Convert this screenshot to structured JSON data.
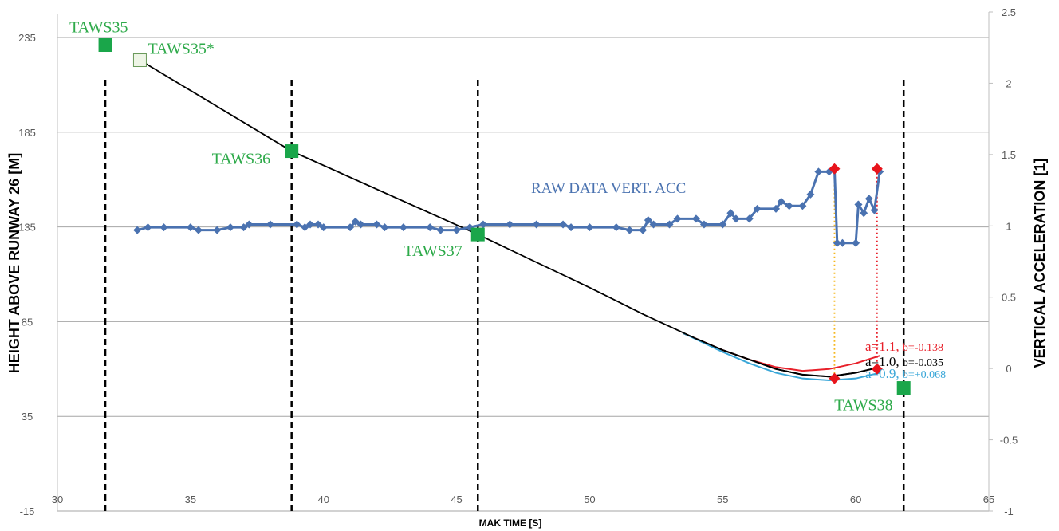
{
  "chart_data": {
    "type": "line",
    "xlabel": "MAK TIME [S]",
    "ylabel_left": "HEIGHT ABOVE RUNWAY 26 [M]",
    "ylabel_right": "VERTICAL ACCELERATION [1]",
    "xlim": [
      30,
      65
    ],
    "ylim_left": [
      -15,
      235
    ],
    "ylim_right": [
      -1,
      2.5
    ],
    "x_ticks": [
      "30",
      "35",
      "40",
      "45",
      "50",
      "55",
      "60",
      "65"
    ],
    "y_left_ticks": [
      "-15",
      "35",
      "85",
      "135",
      "185",
      "235"
    ],
    "y_right_ticks": [
      "-1",
      "-0.5",
      "0",
      "0.5",
      "1",
      "1.5",
      "2",
      "2.5"
    ],
    "grid": "horizontal",
    "colors": {
      "grid": "#a6a6a6",
      "height_line": "#000000",
      "accel": "#4a72b0",
      "fit_a11": "#e8202a",
      "fit_a10": "#000000",
      "fit_a09": "#3aa7d8",
      "marker_green": "#1aa64a",
      "label_green": "#2eaa4a",
      "marker_red": "#e8141c",
      "dash": "#000000",
      "drop_orange": "#f5b820",
      "drop_red": "#e8202a"
    },
    "vertical_dashed_lines_x": [
      31.8,
      38.8,
      45.8,
      61.8
    ],
    "taws_points": [
      {
        "label": "TAWS35",
        "x": 31.8,
        "y": 231,
        "filled": true
      },
      {
        "label": "TAWS35*",
        "x": 33.1,
        "y": 223,
        "filled": false
      },
      {
        "label": "TAWS36",
        "x": 38.8,
        "y": 175,
        "filled": true
      },
      {
        "label": "TAWS37",
        "x": 45.8,
        "y": 131,
        "filled": true
      },
      {
        "label": "TAWS38",
        "x": 61.8,
        "y": 50,
        "filled": true
      }
    ],
    "height_line": {
      "x": [
        33.1,
        38.8,
        45.8,
        50,
        52,
        54,
        55,
        56,
        57,
        58,
        59,
        60,
        60.9
      ],
      "y": [
        223,
        175,
        131,
        103,
        89,
        76,
        70,
        65,
        60,
        57,
        56,
        58,
        61
      ]
    },
    "fits": [
      {
        "name": "a=1.1, b=-0.138",
        "x": [
          53.5,
          55,
          56,
          57,
          58,
          59,
          60,
          60.9
        ],
        "y": [
          79,
          70,
          65,
          61,
          59,
          60,
          63,
          67
        ]
      },
      {
        "name": "a=1.0, b=-0.035",
        "x": [
          53.5,
          55,
          56,
          57,
          58,
          59,
          60,
          60.9
        ],
        "y": [
          79,
          70,
          65,
          60,
          57,
          56,
          58,
          61
        ]
      },
      {
        "name": "a=0.9, b=+0.068",
        "x": [
          53.5,
          55,
          56,
          57,
          58,
          59,
          60,
          60.9
        ],
        "y": [
          79,
          69,
          63,
          58,
          55,
          54,
          55,
          58
        ]
      }
    ],
    "accel_series": {
      "name": "RAW DATA VERT. ACC",
      "x": [
        33.0,
        33.4,
        34.0,
        35.0,
        35.3,
        36.0,
        36.5,
        37.0,
        37.2,
        38.0,
        39.0,
        39.3,
        39.5,
        39.8,
        40.0,
        41.0,
        41.2,
        41.4,
        42.0,
        42.3,
        43.0,
        44.0,
        44.4,
        45.0,
        45.5,
        46.0,
        47.0,
        48.0,
        49.0,
        49.3,
        50.0,
        51.0,
        51.5,
        52.0,
        52.2,
        52.4,
        53.0,
        53.3,
        54.0,
        54.3,
        55.0,
        55.3,
        55.5,
        56.0,
        56.3,
        57.0,
        57.2,
        57.5,
        58.0,
        58.3,
        58.6,
        59.0,
        59.2,
        59.3,
        59.5,
        60.0,
        60.1,
        60.3,
        60.5,
        60.7,
        60.9
      ],
      "y": [
        0.97,
        0.99,
        0.99,
        0.99,
        0.97,
        0.97,
        0.99,
        0.99,
        1.01,
        1.01,
        1.01,
        0.99,
        1.01,
        1.01,
        0.99,
        0.99,
        1.03,
        1.01,
        1.01,
        0.99,
        0.99,
        0.99,
        0.97,
        0.97,
        0.99,
        1.01,
        1.01,
        1.01,
        1.01,
        0.99,
        0.99,
        0.99,
        0.97,
        0.97,
        1.04,
        1.01,
        1.01,
        1.05,
        1.05,
        1.01,
        1.01,
        1.09,
        1.05,
        1.05,
        1.12,
        1.12,
        1.17,
        1.14,
        1.14,
        1.22,
        1.38,
        1.38,
        1.4,
        0.88,
        0.88,
        0.88,
        1.15,
        1.09,
        1.19,
        1.11,
        1.38
      ]
    },
    "red_markers": [
      {
        "x": 59.2,
        "y_accel": 1.4,
        "y_height": 55
      },
      {
        "x": 60.8,
        "y_accel": 1.4,
        "y_height": 60
      }
    ]
  }
}
